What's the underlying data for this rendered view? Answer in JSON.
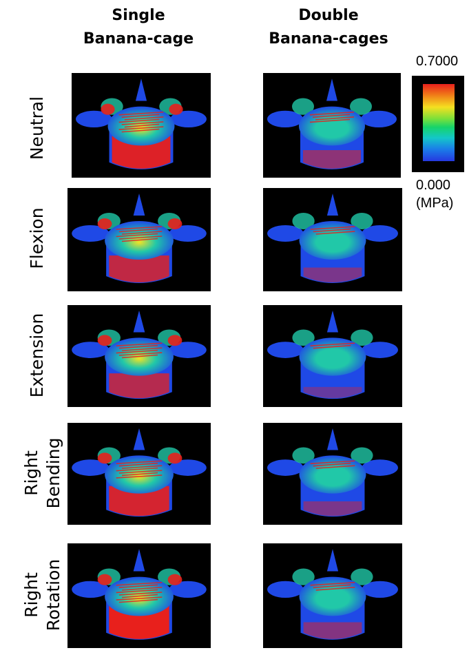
{
  "columns": {
    "single": {
      "line1": "Single",
      "line2": "Banana-cage"
    },
    "double": {
      "line1": "Double",
      "line2": "Banana-cages"
    }
  },
  "rows": [
    {
      "line1": "Neutral",
      "line2": ""
    },
    {
      "line1": "Flexion",
      "line2": ""
    },
    {
      "line1": "Extension",
      "line2": ""
    },
    {
      "line1": "Right",
      "line2": "Bending"
    },
    {
      "line1": "Right",
      "line2": "Rotation"
    }
  ],
  "colorbar": {
    "max": "0.7000",
    "min": "0.000",
    "unit": "(MPa)",
    "colors": [
      "#e8201c",
      "#f07a18",
      "#f5e020",
      "#7be03a",
      "#16d46a",
      "#14c7c9",
      "#1a7fe8",
      "#2638e0"
    ]
  },
  "stress_levels": {
    "single": [
      0.75,
      0.6,
      0.55,
      0.7,
      0.8
    ],
    "double": [
      0.35,
      0.25,
      0.15,
      0.25,
      0.3
    ]
  },
  "colors": {
    "background": "#000000",
    "low_stress": "#1f49e6",
    "mid_stress": "#21c8a8",
    "high_stress": "#e8201c"
  }
}
